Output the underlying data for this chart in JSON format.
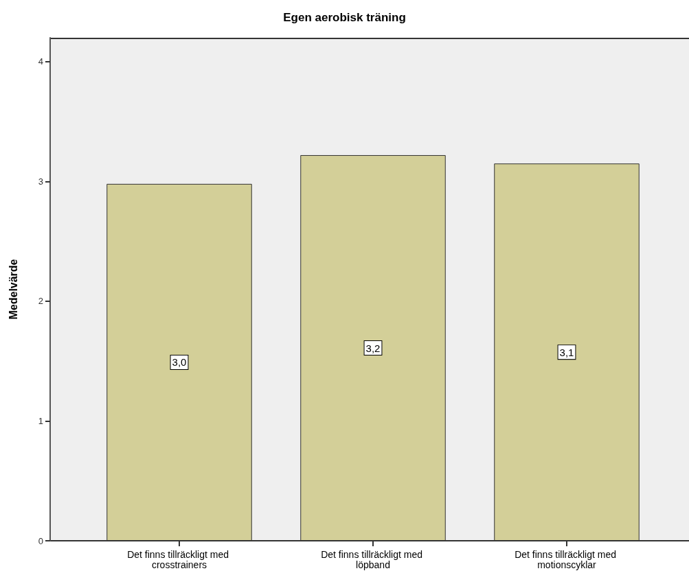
{
  "chart_data": {
    "type": "bar",
    "title": "Egen aerobisk träning",
    "ylabel": "Medelvärde",
    "categories": [
      "Det finns tillräckligt med crosstrainers",
      "Det finns tillräckligt med löpband",
      "Det finns tillräckligt med motionscyklar"
    ],
    "values": [
      2.98,
      3.22,
      3.15
    ],
    "value_labels": [
      "3,0",
      "3,2",
      "3,1"
    ],
    "color": "#d3cf98",
    "ylim": [
      0,
      4.2
    ],
    "yticks": [
      0,
      1,
      2,
      3,
      4
    ]
  }
}
